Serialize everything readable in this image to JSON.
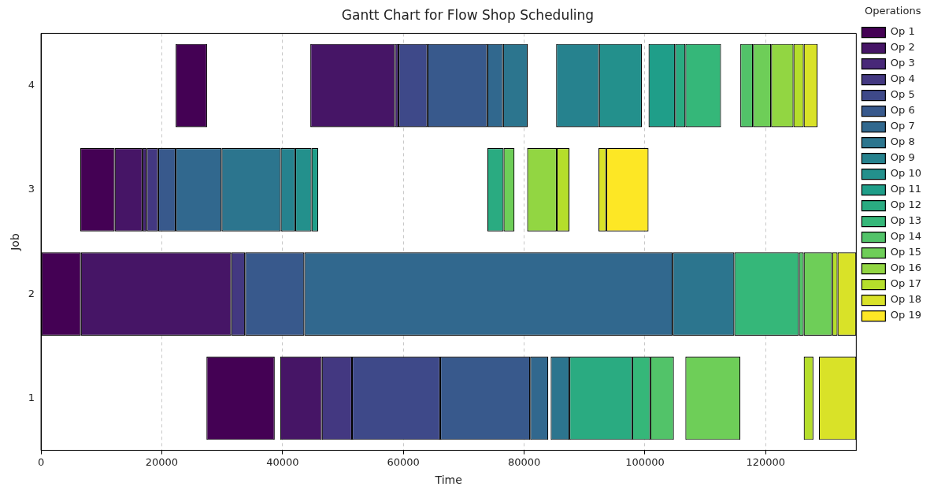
{
  "chart_data": {
    "type": "bar",
    "orientation": "horizontal",
    "title": "Gantt Chart for Flow Shop Scheduling",
    "xlabel": "Time",
    "ylabel": "Job",
    "legend_title": "Operations",
    "legend": "top right",
    "grid": "x",
    "categories": [
      "4",
      "3",
      "2",
      "1"
    ],
    "xlim": [
      0,
      135000
    ],
    "xticks": [
      0,
      20000,
      40000,
      60000,
      80000,
      100000,
      120000
    ],
    "series": [
      {
        "name": "Op 1",
        "color": "#440154",
        "base": [
          22300,
          6500,
          0,
          27400
        ],
        "values": [
          5200,
          5700,
          6600,
          11300
        ]
      },
      {
        "name": "Op 2",
        "color": "#461566",
        "base": [
          44600,
          12200,
          6600,
          39600
        ],
        "values": [
          14000,
          4600,
          24900,
          6900
        ]
      },
      {
        "name": "Op 3",
        "color": "#482878",
        "base": [
          58600,
          16800,
          null,
          null
        ],
        "values": [
          600,
          700,
          null,
          null
        ]
      },
      {
        "name": "Op 4",
        "color": "#433881",
        "base": [
          null,
          17500,
          31500,
          46500
        ],
        "values": [
          null,
          1900,
          2300,
          5000
        ]
      },
      {
        "name": "Op 5",
        "color": "#3e4989",
        "base": [
          59200,
          null,
          null,
          51500
        ],
        "values": [
          4800,
          null,
          null,
          14600
        ]
      },
      {
        "name": "Op 6",
        "color": "#38598c",
        "base": [
          64000,
          19400,
          33800,
          66100
        ],
        "values": [
          9900,
          2900,
          9800,
          14900
        ]
      },
      {
        "name": "Op 7",
        "color": "#31688e",
        "base": [
          73900,
          22300,
          43600,
          81000
        ],
        "values": [
          2600,
          7600,
          61000,
          3000
        ]
      },
      {
        "name": "Op 8",
        "color": "#2c758e",
        "base": [
          76500,
          29900,
          104600,
          84400
        ],
        "values": [
          4100,
          9800,
          10200,
          3100
        ]
      },
      {
        "name": "Op 9",
        "color": "#26828e",
        "base": [
          85300,
          39700,
          null,
          null
        ],
        "values": [
          7100,
          2400,
          null,
          null
        ]
      },
      {
        "name": "Op 10",
        "color": "#23908c",
        "base": [
          92400,
          42100,
          null,
          null
        ],
        "values": [
          7100,
          2700,
          null,
          null
        ]
      },
      {
        "name": "Op 11",
        "color": "#1f9e89",
        "base": [
          100600,
          44800,
          null,
          null
        ],
        "values": [
          4400,
          1100,
          null,
          null
        ]
      },
      {
        "name": "Op 12",
        "color": "#2aab81",
        "base": [
          105000,
          73900,
          null,
          87500
        ],
        "values": [
          1700,
          2700,
          null,
          10400
        ]
      },
      {
        "name": "Op 13",
        "color": "#35b779",
        "base": [
          106700,
          null,
          114800,
          97900
        ],
        "values": [
          5900,
          null,
          10700,
          3000
        ]
      },
      {
        "name": "Op 14",
        "color": "#52c369",
        "base": [
          115800,
          null,
          125500,
          100900
        ],
        "values": [
          2100,
          null,
          800,
          3900
        ]
      },
      {
        "name": "Op 15",
        "color": "#6ece58",
        "base": [
          117900,
          76600,
          126300,
          106700
        ],
        "values": [
          3000,
          1800,
          4700,
          9100
        ]
      },
      {
        "name": "Op 16",
        "color": "#92d642",
        "base": [
          120900,
          80500,
          null,
          null
        ],
        "values": [
          3700,
          4900,
          null,
          null
        ]
      },
      {
        "name": "Op 17",
        "color": "#b5de2b",
        "base": [
          124600,
          85400,
          131000,
          126300
        ],
        "values": [
          1700,
          2100,
          900,
          1600
        ]
      },
      {
        "name": "Op 18",
        "color": "#d9e228",
        "base": [
          126300,
          92300,
          131900,
          128800
        ],
        "values": [
          2300,
          1300,
          3100,
          6200
        ]
      },
      {
        "name": "Op 19",
        "color": "#fde725",
        "base": [
          null,
          93600,
          null,
          null
        ],
        "values": [
          null,
          7000,
          null,
          null
        ]
      }
    ]
  }
}
